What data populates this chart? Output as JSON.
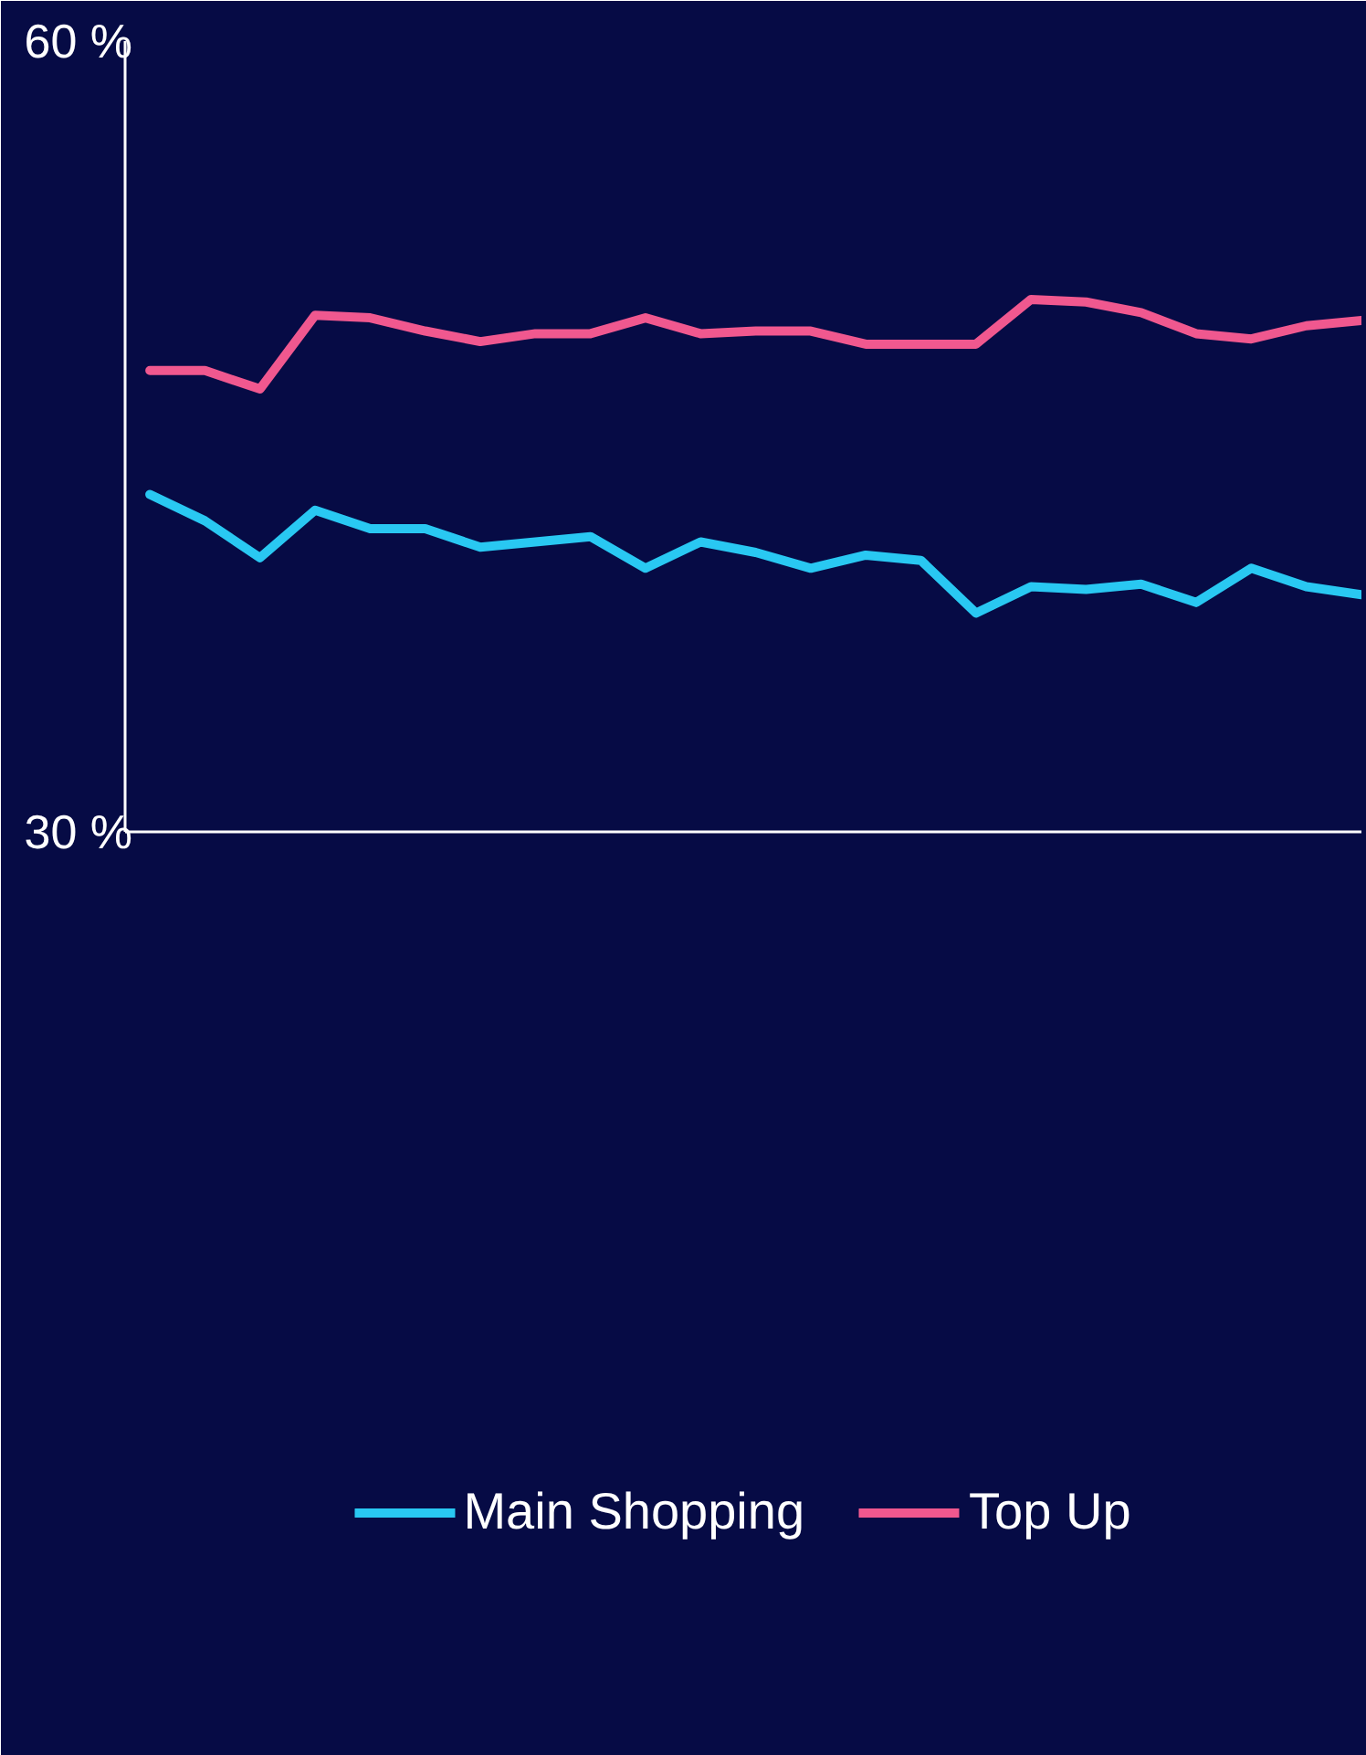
{
  "chart_data": {
    "type": "line",
    "categories": [
      null,
      null,
      null,
      null,
      null,
      null,
      null,
      null,
      null,
      null,
      null,
      null,
      null,
      null,
      null,
      null,
      null,
      null,
      null,
      null,
      null,
      null,
      null
    ],
    "series": [
      {
        "name": "Main Shopping",
        "color": "#29c8f2",
        "values": [
          42.8,
          41.8,
          40.4,
          42.2,
          41.5,
          41.5,
          40.8,
          41.0,
          41.2,
          40.0,
          41.0,
          40.6,
          40.0,
          40.5,
          40.3,
          38.3,
          39.3,
          39.2,
          39.4,
          38.7,
          40.0,
          39.3,
          39.0
        ]
      },
      {
        "name": "Top Up",
        "color": "#f0588f",
        "values": [
          47.5,
          47.5,
          46.8,
          49.6,
          49.5,
          49.0,
          48.6,
          48.9,
          48.9,
          49.5,
          48.9,
          49.0,
          49.0,
          48.5,
          48.5,
          48.5,
          50.2,
          50.1,
          49.7,
          48.9,
          48.7,
          49.2,
          49.4
        ]
      }
    ],
    "ylim": [
      30,
      60
    ],
    "yticks": [
      {
        "value": 30,
        "label": "30 %"
      },
      {
        "value": 60,
        "label": "60 %"
      }
    ],
    "tick_labels": "y",
    "legend": "bottom",
    "line_style": "solid"
  }
}
